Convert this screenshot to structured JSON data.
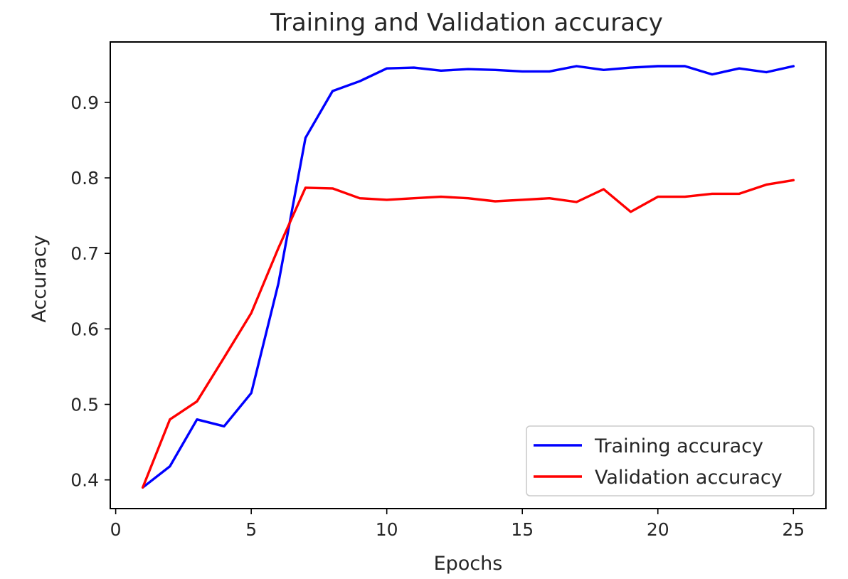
{
  "chart_data": {
    "type": "line",
    "title": "Training and Validation accuracy",
    "xlabel": "Epochs",
    "ylabel": "Accuracy",
    "xlim": [
      -0.2,
      26.2
    ],
    "ylim": [
      0.362,
      0.98
    ],
    "xticks": [
      0,
      5,
      10,
      15,
      20,
      25
    ],
    "yticks": [
      0.4,
      0.5,
      0.6,
      0.7,
      0.8,
      0.9
    ],
    "ytick_labels": [
      "0.4",
      "0.5",
      "0.6",
      "0.7",
      "0.8",
      "0.9"
    ],
    "grid": false,
    "legend_position": "lower-right",
    "x": [
      1,
      2,
      3,
      4,
      5,
      6,
      7,
      8,
      9,
      10,
      11,
      12,
      13,
      14,
      15,
      16,
      17,
      18,
      19,
      20,
      21,
      22,
      23,
      24,
      25
    ],
    "series": [
      {
        "name": "Training accuracy",
        "color": "#0000ff",
        "values": [
          0.39,
          0.418,
          0.48,
          0.471,
          0.515,
          0.66,
          0.853,
          0.915,
          0.928,
          0.945,
          0.946,
          0.942,
          0.944,
          0.943,
          0.941,
          0.941,
          0.948,
          0.943,
          0.946,
          0.948,
          0.948,
          0.937,
          0.945,
          0.94,
          0.948
        ]
      },
      {
        "name": "Validation accuracy",
        "color": "#ff0000",
        "values": [
          0.39,
          0.48,
          0.504,
          0.562,
          0.621,
          0.707,
          0.787,
          0.786,
          0.773,
          0.771,
          0.773,
          0.775,
          0.773,
          0.769,
          0.771,
          0.773,
          0.768,
          0.785,
          0.755,
          0.775,
          0.775,
          0.779,
          0.779,
          0.791,
          0.797
        ]
      }
    ]
  }
}
